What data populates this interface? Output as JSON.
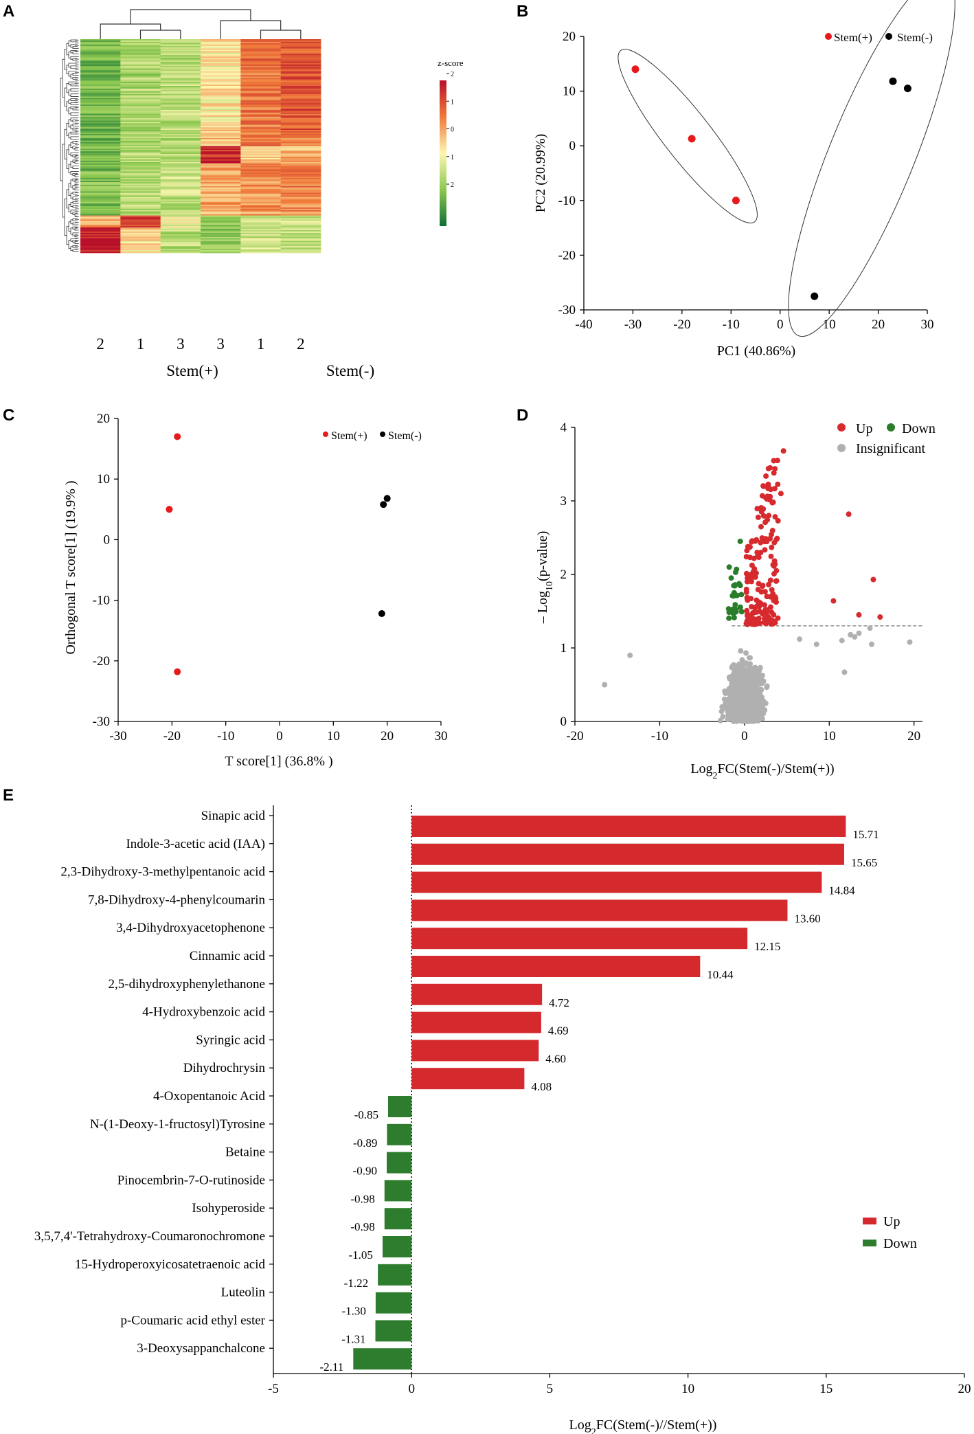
{
  "panels": {
    "A": {
      "label": "A",
      "colorbar_title": "z-score",
      "colorbar_ticks": [
        "2",
        "1",
        "0",
        "1",
        "2"
      ],
      "column_labels": [
        "2",
        "1",
        "3",
        "3",
        "1",
        "2"
      ],
      "group_labels": [
        "Stem(+)",
        "Stem(-)"
      ],
      "colors": {
        "low": "#1a7a3c",
        "mid": "#fdf6b0",
        "high": "#b8102a"
      }
    },
    "B": {
      "label": "B",
      "xlabel": "PC1 (40.86%)",
      "ylabel": "PC2 (20.99%)",
      "xlim": [
        -40,
        30
      ],
      "ylim": [
        -30,
        20
      ],
      "xticks": [
        -40,
        -30,
        -20,
        -10,
        0,
        10,
        20,
        30
      ],
      "yticks": [
        20,
        10,
        0,
        -10,
        -20,
        -30
      ],
      "legend": [
        "Stem(+)",
        "Stem(-)"
      ],
      "series": [
        {
          "name": "Stem(+)",
          "color": "#e8191d",
          "points": [
            [
              -29.5,
              14
            ],
            [
              -18,
              1.3
            ],
            [
              -9,
              -10
            ]
          ]
        },
        {
          "name": "Stem(-)",
          "color": "#000000",
          "points": [
            [
              23,
              11.8
            ],
            [
              26,
              10.5
            ],
            [
              7,
              -27.5
            ]
          ]
        }
      ]
    },
    "C": {
      "label": "C",
      "xlabel": "T score[1] (36.8% )",
      "ylabel": "Orthogonal T score[1] (19.9% )",
      "xlim": [
        -30,
        30
      ],
      "ylim": [
        -30,
        20
      ],
      "xticks": [
        -30,
        -20,
        -10,
        0,
        10,
        20,
        30
      ],
      "yticks": [
        20,
        10,
        0,
        -10,
        -20,
        -30
      ],
      "legend": [
        "Stem(+)",
        "Stem(-)"
      ],
      "series": [
        {
          "name": "Stem(+)",
          "color": "#e8191d",
          "points": [
            [
              -19,
              17
            ],
            [
              -20.5,
              5
            ],
            [
              -19,
              -21.8
            ]
          ]
        },
        {
          "name": "Stem(-)",
          "color": "#000000",
          "points": [
            [
              20,
              6.8
            ],
            [
              19.3,
              5.8
            ],
            [
              19,
              -12.2
            ]
          ]
        }
      ]
    },
    "D": {
      "label": "D",
      "xlabel": "Log2FC(Stem(-)/Stem(+))",
      "ylabel": "– Log10(p-value)",
      "xlim": [
        -20,
        21
      ],
      "ylim": [
        0,
        4
      ],
      "xticks": [
        -20,
        -10,
        0,
        10,
        20
      ],
      "yticks": [
        4,
        3,
        2,
        1,
        0
      ],
      "threshold": 1.3,
      "legend": [
        "Up",
        "Down",
        "Insignificant"
      ],
      "colors": {
        "up": "#d62a2e",
        "down": "#2a7d2a",
        "insig": "#b0b0b0"
      }
    },
    "E": {
      "label": "E",
      "legend": [
        "Up",
        "Down"
      ],
      "colors": {
        "up": "#d42a2e",
        "down": "#2e7d2e"
      }
    }
  },
  "chart_data": {
    "type": "bar",
    "orientation": "horizontal",
    "title": "",
    "xlabel": "Log2FC(Stem(-)//Stem(+))",
    "xlim": [
      -5,
      20
    ],
    "xticks": [
      -5,
      0,
      5,
      10,
      15,
      20
    ],
    "categories": [
      "Sinapic acid",
      "Indole-3-acetic acid (IAA)",
      "2,3-Dihydroxy-3-methylpentanoic acid",
      "7,8-Dihydroxy-4-phenylcoumarin",
      "3,4-Dihydroxyacetophenone",
      "Cinnamic acid",
      "2,5-dihydroxyphenylethanone",
      "4-Hydroxybenzoic acid",
      "Syringic acid",
      "Dihydrochrysin",
      "4-Oxopentanoic Acid",
      "N-(1-Deoxy-1-fructosyl)Tyrosine",
      "Betaine",
      "Pinocembrin-7-O-rutinoside",
      "Isohyperoside",
      "3,5,7,4'-Tetrahydroxy-Coumaronochromone",
      "15-Hydroperoxyicosatetraenoic acid",
      "Luteolin",
      "p-Coumaric acid ethyl ester",
      "3-Deoxysappanchalcone"
    ],
    "values": [
      15.71,
      15.65,
      14.84,
      13.6,
      12.15,
      10.44,
      4.72,
      4.69,
      4.6,
      4.08,
      -0.85,
      -0.89,
      -0.9,
      -0.98,
      -0.98,
      -1.05,
      -1.22,
      -1.3,
      -1.31,
      -2.11
    ],
    "value_labels": [
      "15.71",
      "15.65",
      "14.84",
      "13.60",
      "12.15",
      "10.44",
      "4.72",
      "4.69",
      "4.60",
      "4.08",
      "-0.85",
      "-0.89",
      "-0.90",
      "-0.98",
      "-0.98",
      "-1.05",
      "-1.22",
      "-1.30",
      "-1.31",
      "-2.11"
    ],
    "legend": [
      "Up",
      "Down"
    ]
  }
}
